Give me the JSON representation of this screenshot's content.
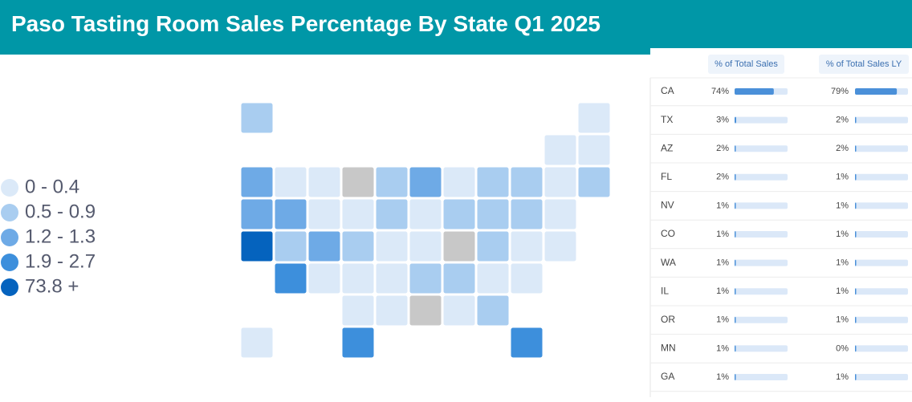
{
  "header": {
    "title": "Paso Tasting Room Sales Percentage By State Q1 2025"
  },
  "legend": [
    {
      "label": "0 - 0.4",
      "color": "#dbe9f8"
    },
    {
      "label": "0.5 - 0.9",
      "color": "#a9cdf0"
    },
    {
      "label": "1.2 - 1.3",
      "color": "#6eaae6"
    },
    {
      "label": "1.9 - 2.7",
      "color": "#3d8fdc"
    },
    {
      "label": "73.8 +",
      "color": "#0563be"
    }
  ],
  "table": {
    "columns": [
      "% of Total Sales",
      "% of Total Sales LY"
    ],
    "bar_color": "#4a90d9",
    "rows": [
      {
        "state": "CA",
        "sales": {
          "value": 74,
          "label": "74%"
        },
        "sales_ly": {
          "value": 79,
          "label": "79%"
        }
      },
      {
        "state": "TX",
        "sales": {
          "value": 3,
          "label": "3%"
        },
        "sales_ly": {
          "value": 2,
          "label": "2%"
        }
      },
      {
        "state": "AZ",
        "sales": {
          "value": 2,
          "label": "2%"
        },
        "sales_ly": {
          "value": 2,
          "label": "2%"
        }
      },
      {
        "state": "FL",
        "sales": {
          "value": 2,
          "label": "2%"
        },
        "sales_ly": {
          "value": 1,
          "label": "1%"
        }
      },
      {
        "state": "NV",
        "sales": {
          "value": 1,
          "label": "1%"
        },
        "sales_ly": {
          "value": 1,
          "label": "1%"
        }
      },
      {
        "state": "CO",
        "sales": {
          "value": 1,
          "label": "1%"
        },
        "sales_ly": {
          "value": 1,
          "label": "1%"
        }
      },
      {
        "state": "WA",
        "sales": {
          "value": 1,
          "label": "1%"
        },
        "sales_ly": {
          "value": 1,
          "label": "1%"
        }
      },
      {
        "state": "IL",
        "sales": {
          "value": 1,
          "label": "1%"
        },
        "sales_ly": {
          "value": 1,
          "label": "1%"
        }
      },
      {
        "state": "OR",
        "sales": {
          "value": 1,
          "label": "1%"
        },
        "sales_ly": {
          "value": 1,
          "label": "1%"
        }
      },
      {
        "state": "MN",
        "sales": {
          "value": 1,
          "label": "1%"
        },
        "sales_ly": {
          "value": 0,
          "label": "0%"
        }
      },
      {
        "state": "GA",
        "sales": {
          "value": 1,
          "label": "1%"
        },
        "sales_ly": {
          "value": 1,
          "label": "1%"
        }
      }
    ]
  }
}
